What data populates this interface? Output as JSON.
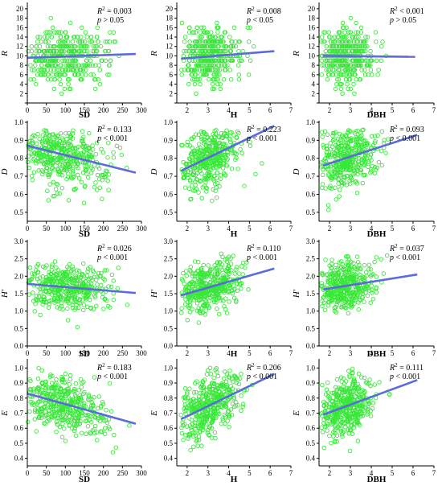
{
  "figure": {
    "x_axes": [
      {
        "label": "SD",
        "range": [
          0,
          300
        ],
        "ticks": [
          0,
          50,
          100,
          150,
          200,
          250,
          300
        ]
      },
      {
        "label": "H",
        "range": [
          1.5,
          7
        ],
        "ticks": [
          2,
          3,
          4,
          5,
          6,
          7
        ]
      },
      {
        "label": "DBH",
        "range": [
          1.5,
          7
        ],
        "ticks": [
          2,
          3,
          4,
          5,
          6,
          7
        ]
      }
    ],
    "y_axes": [
      {
        "label": "R",
        "range": [
          0,
          21
        ],
        "ticks": [
          0,
          2,
          4,
          6,
          8,
          10,
          12,
          14,
          16,
          18,
          20
        ],
        "tick_labels": [
          "",
          "2",
          "4",
          "6",
          "8",
          "10",
          "12",
          "14",
          "16",
          "18",
          "20"
        ]
      },
      {
        "label": "D",
        "range": [
          0.45,
          1.0
        ],
        "ticks": [
          0.5,
          0.6,
          0.7,
          0.8,
          0.9,
          1.0
        ],
        "tick_labels": [
          "0.5",
          "0.6",
          "0.7",
          "0.8",
          "0.9",
          "1.0"
        ]
      },
      {
        "label": "H'",
        "range": [
          0,
          3.0
        ],
        "ticks": [
          0,
          0.5,
          1.0,
          1.5,
          2.0,
          2.5,
          3.0
        ],
        "tick_labels": [
          "0.0",
          "0.5",
          "1.0",
          "1.5",
          "2.0",
          "2.5",
          "3.0"
        ]
      },
      {
        "label": "E",
        "range": [
          0.35,
          1.05
        ],
        "ticks": [
          0.4,
          0.5,
          0.6,
          0.7,
          0.8,
          0.9,
          1.0
        ],
        "tick_labels": [
          "0.4",
          "0.5",
          "0.6",
          "0.7",
          "0.8",
          "0.9",
          "1.0"
        ]
      }
    ],
    "colors": {
      "points": "#38e838",
      "fit_line": "#5b6bdb",
      "axis": "#000000"
    }
  },
  "chart_data": [
    {
      "type": "scatter",
      "row": 0,
      "col": 0,
      "xlabel": "SD",
      "ylabel": "R",
      "r2": "0.003",
      "p": "> 0.05",
      "fit": {
        "x": [
          0,
          285
        ],
        "y": [
          9.6,
          10.4
        ]
      }
    },
    {
      "type": "scatter",
      "row": 0,
      "col": 1,
      "xlabel": "H",
      "ylabel": "R",
      "r2": "0.008",
      "p": "< 0.05",
      "fit": {
        "x": [
          1.7,
          6.2
        ],
        "y": [
          9.4,
          11.0
        ]
      }
    },
    {
      "type": "scatter",
      "row": 0,
      "col": 2,
      "xlabel": "DBH",
      "ylabel": "R",
      "r2": "0.001",
      "r2_op": "<",
      "p": "> 0.05",
      "fit": {
        "x": [
          1.7,
          6.1
        ],
        "y": [
          10.0,
          9.8
        ]
      }
    },
    {
      "type": "scatter",
      "row": 1,
      "col": 0,
      "xlabel": "SD",
      "ylabel": "D",
      "r2": "0.133",
      "p": "< 0.001",
      "fit": {
        "x": [
          0,
          285
        ],
        "y": [
          0.87,
          0.72
        ]
      }
    },
    {
      "type": "scatter",
      "row": 1,
      "col": 1,
      "xlabel": "H",
      "ylabel": "D",
      "r2": "0.223",
      "p": "< 0.001",
      "fit": {
        "x": [
          1.7,
          6.2
        ],
        "y": [
          0.73,
          0.98
        ]
      }
    },
    {
      "type": "scatter",
      "row": 1,
      "col": 2,
      "xlabel": "DBH",
      "ylabel": "D",
      "r2": "0.093",
      "p": "< 0.001",
      "fit": {
        "x": [
          1.7,
          6.2
        ],
        "y": [
          0.76,
          0.93
        ]
      }
    },
    {
      "type": "scatter",
      "row": 2,
      "col": 0,
      "xlabel": "SD",
      "ylabel": "H'",
      "r2": "0.026",
      "p": "< 0.001",
      "fit": {
        "x": [
          0,
          285
        ],
        "y": [
          1.78,
          1.52
        ]
      }
    },
    {
      "type": "scatter",
      "row": 2,
      "col": 1,
      "xlabel": "H",
      "ylabel": "H'",
      "r2": "0.110",
      "p": "< 0.001",
      "fit": {
        "x": [
          1.7,
          6.2
        ],
        "y": [
          1.45,
          2.22
        ]
      }
    },
    {
      "type": "scatter",
      "row": 2,
      "col": 2,
      "xlabel": "DBH",
      "ylabel": "H'",
      "r2": "0.037",
      "p": "< 0.001",
      "fit": {
        "x": [
          1.7,
          6.2
        ],
        "y": [
          1.62,
          2.05
        ]
      }
    },
    {
      "type": "scatter",
      "row": 3,
      "col": 0,
      "xlabel": "SD",
      "ylabel": "E",
      "r2": "0.183",
      "p": "< 0.001",
      "fit": {
        "x": [
          0,
          285
        ],
        "y": [
          0.83,
          0.63
        ]
      }
    },
    {
      "type": "scatter",
      "row": 3,
      "col": 1,
      "xlabel": "H",
      "ylabel": "E",
      "r2": "0.206",
      "p": "< 0.001",
      "fit": {
        "x": [
          1.7,
          6.2
        ],
        "y": [
          0.66,
          0.96
        ]
      }
    },
    {
      "type": "scatter",
      "row": 3,
      "col": 2,
      "xlabel": "DBH",
      "ylabel": "E",
      "r2": "0.111",
      "p": "< 0.001",
      "fit": {
        "x": [
          1.7,
          6.2
        ],
        "y": [
          0.69,
          0.92
        ]
      }
    }
  ]
}
